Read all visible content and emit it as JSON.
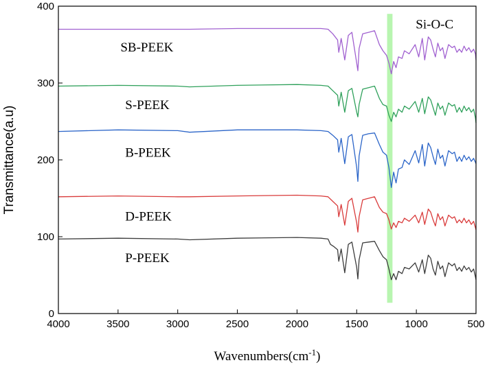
{
  "chart_data": {
    "type": "line",
    "title": "",
    "xlabel": "Wavenumbers(cm",
    "xlabel_sup": "-1",
    "xlabel_close": ")",
    "ylabel": "Transmittance(a.u)",
    "xlim": [
      4000,
      500
    ],
    "ylim": [
      0,
      400
    ],
    "x_ticks": [
      4000,
      3500,
      3000,
      2500,
      2000,
      1500,
      1000,
      500
    ],
    "y_ticks": [
      0,
      100,
      200,
      300,
      400
    ],
    "grid": false,
    "highlight_band": {
      "x_from": 1245,
      "x_to": 1200,
      "y_from": 14,
      "y_to": 390,
      "label": "Si-O-C",
      "color": "#b8f5b0"
    },
    "series": [
      {
        "name": "P-PEEK",
        "color": "#3b3b3b",
        "baseline": 98,
        "end_value": 44,
        "points": [
          [
            4000,
            97
          ],
          [
            3500,
            98
          ],
          [
            3000,
            97
          ],
          [
            2900,
            96
          ],
          [
            2500,
            98
          ],
          [
            2000,
            99
          ],
          [
            1800,
            98
          ],
          [
            1740,
            97
          ],
          [
            1720,
            90
          ],
          [
            1690,
            87
          ],
          [
            1660,
            83
          ],
          [
            1650,
            68
          ],
          [
            1630,
            84
          ],
          [
            1600,
            53
          ],
          [
            1570,
            90
          ],
          [
            1540,
            93
          ],
          [
            1500,
            60
          ],
          [
            1490,
            45
          ],
          [
            1480,
            70
          ],
          [
            1450,
            92
          ],
          [
            1400,
            93
          ],
          [
            1350,
            94
          ],
          [
            1310,
            82
          ],
          [
            1280,
            74
          ],
          [
            1250,
            70
          ],
          [
            1230,
            58
          ],
          [
            1210,
            44
          ],
          [
            1190,
            52
          ],
          [
            1170,
            44
          ],
          [
            1150,
            55
          ],
          [
            1120,
            52
          ],
          [
            1100,
            60
          ],
          [
            1060,
            58
          ],
          [
            1010,
            66
          ],
          [
            980,
            54
          ],
          [
            950,
            70
          ],
          [
            930,
            52
          ],
          [
            900,
            76
          ],
          [
            880,
            72
          ],
          [
            860,
            58
          ],
          [
            840,
            50
          ],
          [
            820,
            68
          ],
          [
            800,
            58
          ],
          [
            780,
            62
          ],
          [
            760,
            48
          ],
          [
            730,
            66
          ],
          [
            700,
            62
          ],
          [
            680,
            65
          ],
          [
            660,
            56
          ],
          [
            640,
            60
          ],
          [
            620,
            55
          ],
          [
            600,
            62
          ],
          [
            580,
            57
          ],
          [
            560,
            60
          ],
          [
            540,
            54
          ],
          [
            520,
            58
          ],
          [
            505,
            48
          ],
          [
            500,
            44
          ]
        ]
      },
      {
        "name": "D-PEEK",
        "color": "#d93a3a",
        "baseline": 153,
        "end_value": 109,
        "points": [
          [
            4000,
            152
          ],
          [
            3500,
            153
          ],
          [
            3000,
            152
          ],
          [
            2900,
            152
          ],
          [
            2500,
            153
          ],
          [
            2000,
            154
          ],
          [
            1800,
            153
          ],
          [
            1740,
            152
          ],
          [
            1700,
            146
          ],
          [
            1660,
            140
          ],
          [
            1650,
            126
          ],
          [
            1630,
            142
          ],
          [
            1600,
            115
          ],
          [
            1570,
            146
          ],
          [
            1540,
            150
          ],
          [
            1500,
            118
          ],
          [
            1490,
            106
          ],
          [
            1480,
            126
          ],
          [
            1450,
            148
          ],
          [
            1400,
            150
          ],
          [
            1350,
            152
          ],
          [
            1310,
            138
          ],
          [
            1280,
            132
          ],
          [
            1250,
            130
          ],
          [
            1230,
            122
          ],
          [
            1210,
            110
          ],
          [
            1190,
            118
          ],
          [
            1170,
            112
          ],
          [
            1150,
            120
          ],
          [
            1120,
            118
          ],
          [
            1100,
            124
          ],
          [
            1060,
            120
          ],
          [
            1010,
            128
          ],
          [
            980,
            118
          ],
          [
            950,
            132
          ],
          [
            930,
            116
          ],
          [
            900,
            136
          ],
          [
            880,
            132
          ],
          [
            860,
            122
          ],
          [
            840,
            114
          ],
          [
            820,
            130
          ],
          [
            800,
            122
          ],
          [
            780,
            126
          ],
          [
            760,
            114
          ],
          [
            730,
            128
          ],
          [
            700,
            124
          ],
          [
            680,
            126
          ],
          [
            660,
            118
          ],
          [
            640,
            122
          ],
          [
            620,
            118
          ],
          [
            600,
            124
          ],
          [
            580,
            118
          ],
          [
            560,
            122
          ],
          [
            540,
            116
          ],
          [
            520,
            120
          ],
          [
            505,
            112
          ],
          [
            500,
            109
          ]
        ]
      },
      {
        "name": "B-PEEK",
        "color": "#2a64c8",
        "baseline": 238,
        "end_value": 195,
        "points": [
          [
            4000,
            237
          ],
          [
            3500,
            239
          ],
          [
            3000,
            238
          ],
          [
            2900,
            236
          ],
          [
            2500,
            239
          ],
          [
            2000,
            239
          ],
          [
            1800,
            238
          ],
          [
            1740,
            237
          ],
          [
            1700,
            232
          ],
          [
            1660,
            226
          ],
          [
            1650,
            210
          ],
          [
            1630,
            228
          ],
          [
            1600,
            195
          ],
          [
            1570,
            230
          ],
          [
            1540,
            233
          ],
          [
            1500,
            190
          ],
          [
            1490,
            172
          ],
          [
            1480,
            205
          ],
          [
            1450,
            232
          ],
          [
            1400,
            234
          ],
          [
            1350,
            235
          ],
          [
            1310,
            220
          ],
          [
            1280,
            210
          ],
          [
            1250,
            206
          ],
          [
            1230,
            190
          ],
          [
            1210,
            164
          ],
          [
            1190,
            184
          ],
          [
            1170,
            170
          ],
          [
            1150,
            188
          ],
          [
            1120,
            190
          ],
          [
            1100,
            200
          ],
          [
            1060,
            194
          ],
          [
            1010,
            212
          ],
          [
            980,
            196
          ],
          [
            950,
            220
          ],
          [
            930,
            192
          ],
          [
            900,
            222
          ],
          [
            880,
            216
          ],
          [
            860,
            204
          ],
          [
            840,
            194
          ],
          [
            820,
            214
          ],
          [
            800,
            202
          ],
          [
            780,
            206
          ],
          [
            760,
            192
          ],
          [
            730,
            212
          ],
          [
            700,
            208
          ],
          [
            680,
            210
          ],
          [
            660,
            198
          ],
          [
            640,
            204
          ],
          [
            620,
            198
          ],
          [
            600,
            206
          ],
          [
            580,
            200
          ],
          [
            560,
            204
          ],
          [
            540,
            198
          ],
          [
            520,
            202
          ],
          [
            505,
            197
          ],
          [
            500,
            195
          ]
        ]
      },
      {
        "name": "S-PEEK",
        "color": "#2ea05a",
        "baseline": 297,
        "end_value": 248,
        "points": [
          [
            4000,
            296
          ],
          [
            3500,
            297
          ],
          [
            3000,
            296
          ],
          [
            2900,
            295
          ],
          [
            2500,
            297
          ],
          [
            2000,
            298
          ],
          [
            1800,
            297
          ],
          [
            1740,
            296
          ],
          [
            1700,
            290
          ],
          [
            1660,
            284
          ],
          [
            1650,
            270
          ],
          [
            1630,
            288
          ],
          [
            1600,
            262
          ],
          [
            1570,
            290
          ],
          [
            1540,
            293
          ],
          [
            1500,
            262
          ],
          [
            1490,
            256
          ],
          [
            1480,
            272
          ],
          [
            1450,
            292
          ],
          [
            1400,
            294
          ],
          [
            1350,
            296
          ],
          [
            1310,
            280
          ],
          [
            1280,
            272
          ],
          [
            1250,
            270
          ],
          [
            1230,
            258
          ],
          [
            1210,
            250
          ],
          [
            1190,
            262
          ],
          [
            1170,
            256
          ],
          [
            1150,
            266
          ],
          [
            1120,
            262
          ],
          [
            1100,
            270
          ],
          [
            1060,
            266
          ],
          [
            1010,
            276
          ],
          [
            980,
            262
          ],
          [
            950,
            280
          ],
          [
            930,
            260
          ],
          [
            900,
            282
          ],
          [
            880,
            278
          ],
          [
            860,
            268
          ],
          [
            840,
            258
          ],
          [
            820,
            274
          ],
          [
            800,
            266
          ],
          [
            780,
            270
          ],
          [
            760,
            258
          ],
          [
            730,
            274
          ],
          [
            700,
            270
          ],
          [
            680,
            272
          ],
          [
            660,
            262
          ],
          [
            640,
            268
          ],
          [
            620,
            262
          ],
          [
            600,
            270
          ],
          [
            580,
            264
          ],
          [
            560,
            268
          ],
          [
            540,
            262
          ],
          [
            520,
            266
          ],
          [
            505,
            255
          ],
          [
            500,
            248
          ]
        ]
      },
      {
        "name": "SB-PEEK",
        "color": "#a060d0",
        "baseline": 370,
        "end_value": 330,
        "points": [
          [
            4000,
            370
          ],
          [
            3500,
            370
          ],
          [
            3000,
            370
          ],
          [
            2900,
            370
          ],
          [
            2500,
            371
          ],
          [
            2000,
            371
          ],
          [
            1800,
            371
          ],
          [
            1740,
            370
          ],
          [
            1700,
            364
          ],
          [
            1660,
            356
          ],
          [
            1650,
            340
          ],
          [
            1630,
            358
          ],
          [
            1600,
            330
          ],
          [
            1570,
            362
          ],
          [
            1540,
            366
          ],
          [
            1500,
            326
          ],
          [
            1490,
            316
          ],
          [
            1480,
            345
          ],
          [
            1450,
            364
          ],
          [
            1400,
            366
          ],
          [
            1350,
            368
          ],
          [
            1310,
            350
          ],
          [
            1280,
            342
          ],
          [
            1250,
            336
          ],
          [
            1230,
            326
          ],
          [
            1210,
            312
          ],
          [
            1190,
            328
          ],
          [
            1170,
            320
          ],
          [
            1150,
            334
          ],
          [
            1120,
            332
          ],
          [
            1100,
            342
          ],
          [
            1060,
            338
          ],
          [
            1010,
            350
          ],
          [
            980,
            334
          ],
          [
            950,
            358
          ],
          [
            930,
            330
          ],
          [
            900,
            360
          ],
          [
            880,
            356
          ],
          [
            860,
            344
          ],
          [
            840,
            334
          ],
          [
            820,
            352
          ],
          [
            800,
            342
          ],
          [
            780,
            346
          ],
          [
            760,
            332
          ],
          [
            730,
            350
          ],
          [
            700,
            346
          ],
          [
            680,
            348
          ],
          [
            660,
            340
          ],
          [
            640,
            344
          ],
          [
            620,
            340
          ],
          [
            600,
            348
          ],
          [
            580,
            342
          ],
          [
            560,
            346
          ],
          [
            540,
            340
          ],
          [
            520,
            344
          ],
          [
            505,
            338
          ],
          [
            500,
            330
          ]
        ]
      }
    ],
    "annotations": [
      {
        "text": "SB-PEEK",
        "x": 3480,
        "y": 341
      },
      {
        "text": "S-PEEK",
        "x": 3440,
        "y": 266
      },
      {
        "text": "B-PEEK",
        "x": 3440,
        "y": 204
      },
      {
        "text": "D-PEEK",
        "x": 3440,
        "y": 121
      },
      {
        "text": "P-PEEK",
        "x": 3440,
        "y": 67
      },
      {
        "text": "Si-O-C",
        "x": 1005,
        "y": 371
      }
    ]
  }
}
